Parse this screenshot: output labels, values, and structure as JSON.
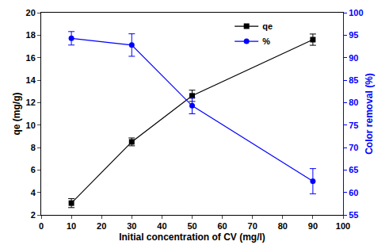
{
  "chart_data": {
    "type": "line",
    "x_label": "Initial concentration of CV (mg/l)",
    "y_label": "qe (mg/g)",
    "y2_label": "Color removal (%)",
    "x": [
      10,
      30,
      50,
      90
    ],
    "series": [
      {
        "name": "qe",
        "color": "#000000",
        "marker": "square",
        "axis": "y",
        "values": [
          3.05,
          8.5,
          12.6,
          17.6
        ],
        "errors": [
          0.4,
          0.35,
          0.5,
          0.5
        ]
      },
      {
        "name": "%",
        "color": "#0000ff",
        "marker": "circle",
        "axis": "y2",
        "values": [
          94.3,
          92.8,
          79.3,
          62.5
        ],
        "errors": [
          1.5,
          2.5,
          1.8,
          2.8
        ]
      }
    ],
    "xlim": [
      0,
      100
    ],
    "xticks": [
      0,
      10,
      20,
      30,
      40,
      50,
      60,
      70,
      80,
      90,
      100
    ],
    "ylim": [
      2,
      20
    ],
    "yticks": [
      2,
      4,
      6,
      8,
      10,
      12,
      14,
      16,
      18,
      20
    ],
    "y2lim": [
      55,
      100
    ],
    "y2ticks": [
      55,
      60,
      65,
      70,
      75,
      80,
      85,
      90,
      95,
      100
    ],
    "grid": false,
    "legend": "upper right"
  }
}
